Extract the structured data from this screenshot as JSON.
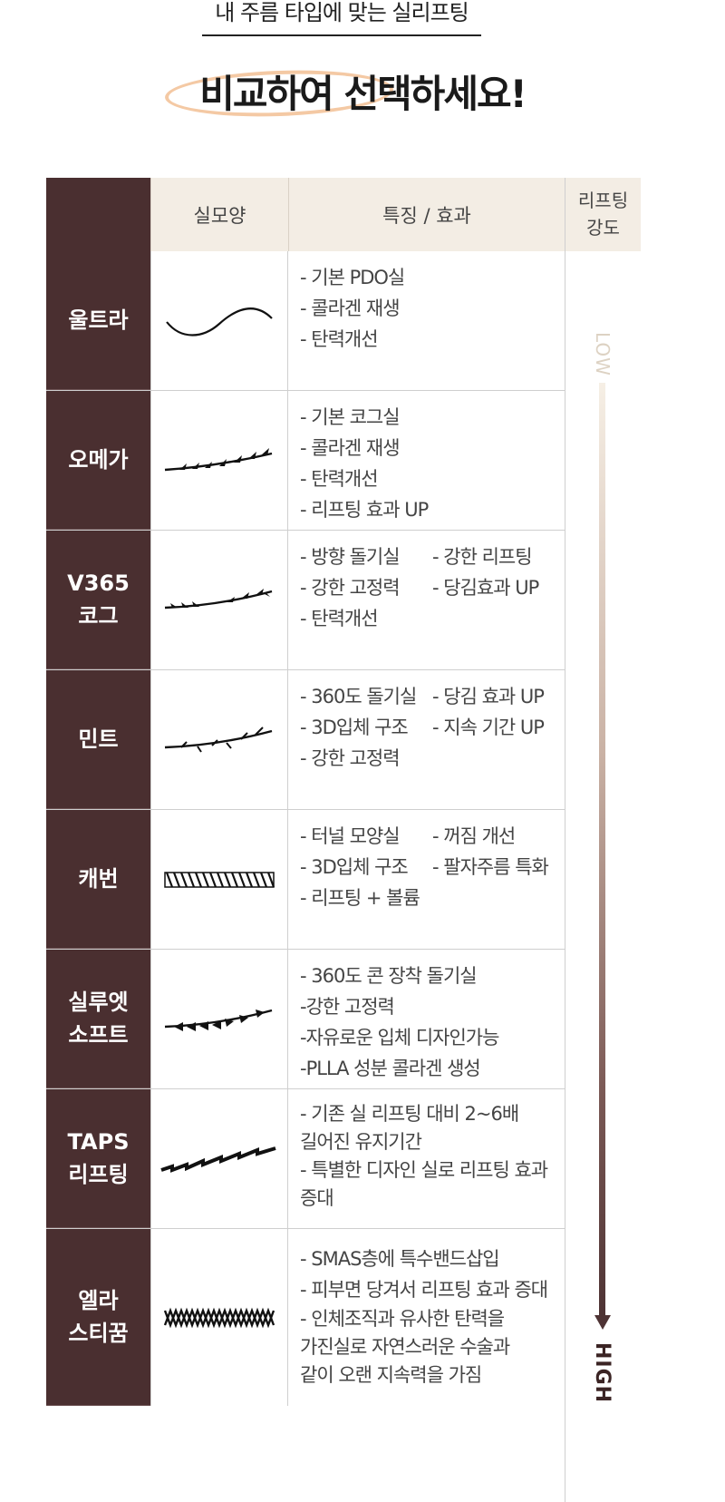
{
  "header": {
    "subtitle": "내 주름 타입에 맞는 실리프팅",
    "headline": "비교하여 선택하세요!"
  },
  "table": {
    "columns": [
      "실모양",
      "특징 / 효과"
    ],
    "intensity_header": "리프팅\n강도",
    "low_label": "LOW",
    "high_label": "HIGH",
    "rows": [
      {
        "name": "울트라",
        "shape_icon": "smooth-wave-thread-icon",
        "features": [
          "- 기본 PDO실",
          "- 콜라겐 재생",
          "- 탄력개선"
        ]
      },
      {
        "name": "오메가",
        "shape_icon": "barbed-curve-thread-icon",
        "features": [
          "- 기본 코그실",
          "- 콜라겐 재생",
          "- 탄력개선",
          "- 리프팅 효과 UP"
        ]
      },
      {
        "name": "V365\n코그",
        "shape_icon": "bidirectional-barb-thread-icon",
        "features_pairs": [
          [
            "- 방향 돌기실",
            "- 강한 리프팅"
          ],
          [
            "- 강한 고정력",
            "- 당김효과 UP"
          ]
        ],
        "features": [
          "- 탄력개선"
        ]
      },
      {
        "name": "민트",
        "shape_icon": "360-barb-thread-icon",
        "features_pairs": [
          [
            "- 360도 돌기실",
            "- 당김 효과 UP"
          ],
          [
            "- 3D입체 구조",
            "- 지속 기간 UP"
          ]
        ],
        "features": [
          "- 강한 고정력"
        ]
      },
      {
        "name": "캐번",
        "shape_icon": "tunnel-mesh-thread-icon",
        "features_pairs": [
          [
            "- 터널 모양실",
            "- 꺼짐 개선"
          ],
          [
            "- 3D입체 구조",
            "- 팔자주름 특화"
          ]
        ],
        "features": [
          "- 리프팅 + 볼륨"
        ]
      },
      {
        "name": "실루엣\n소프트",
        "shape_icon": "cone-thread-icon",
        "features": [
          "- 360도 콘 장착 돌기실",
          "-강한 고정력",
          "-자유로운 입체 디자인가능",
          "-PLLA 성분 콜라겐 생성"
        ]
      },
      {
        "name": "TAPS\n리프팅",
        "shape_icon": "zigzag-band-thread-icon",
        "features": [
          "- 기존 실 리프팅 대비 2~6배\n  길어진 유지기간",
          "- 특별한 디자인 실로 리프팅 효과\n  증대"
        ]
      },
      {
        "name": "엘라\n스티꿈",
        "shape_icon": "elastic-coil-thread-icon",
        "features": [
          "- SMAS층에 특수밴드삽입",
          "- 피부면 당겨서 리프팅 효과 증대",
          "- 인체조직과 유사한 탄력을\n  가진실로 자연스러운 수술과\n  같이 오랜 지속력을 가짐"
        ]
      }
    ]
  },
  "colors": {
    "name_cell": "#4a2f30",
    "header_bg": "#f3ede4",
    "highlight": "#f4c9a4"
  }
}
